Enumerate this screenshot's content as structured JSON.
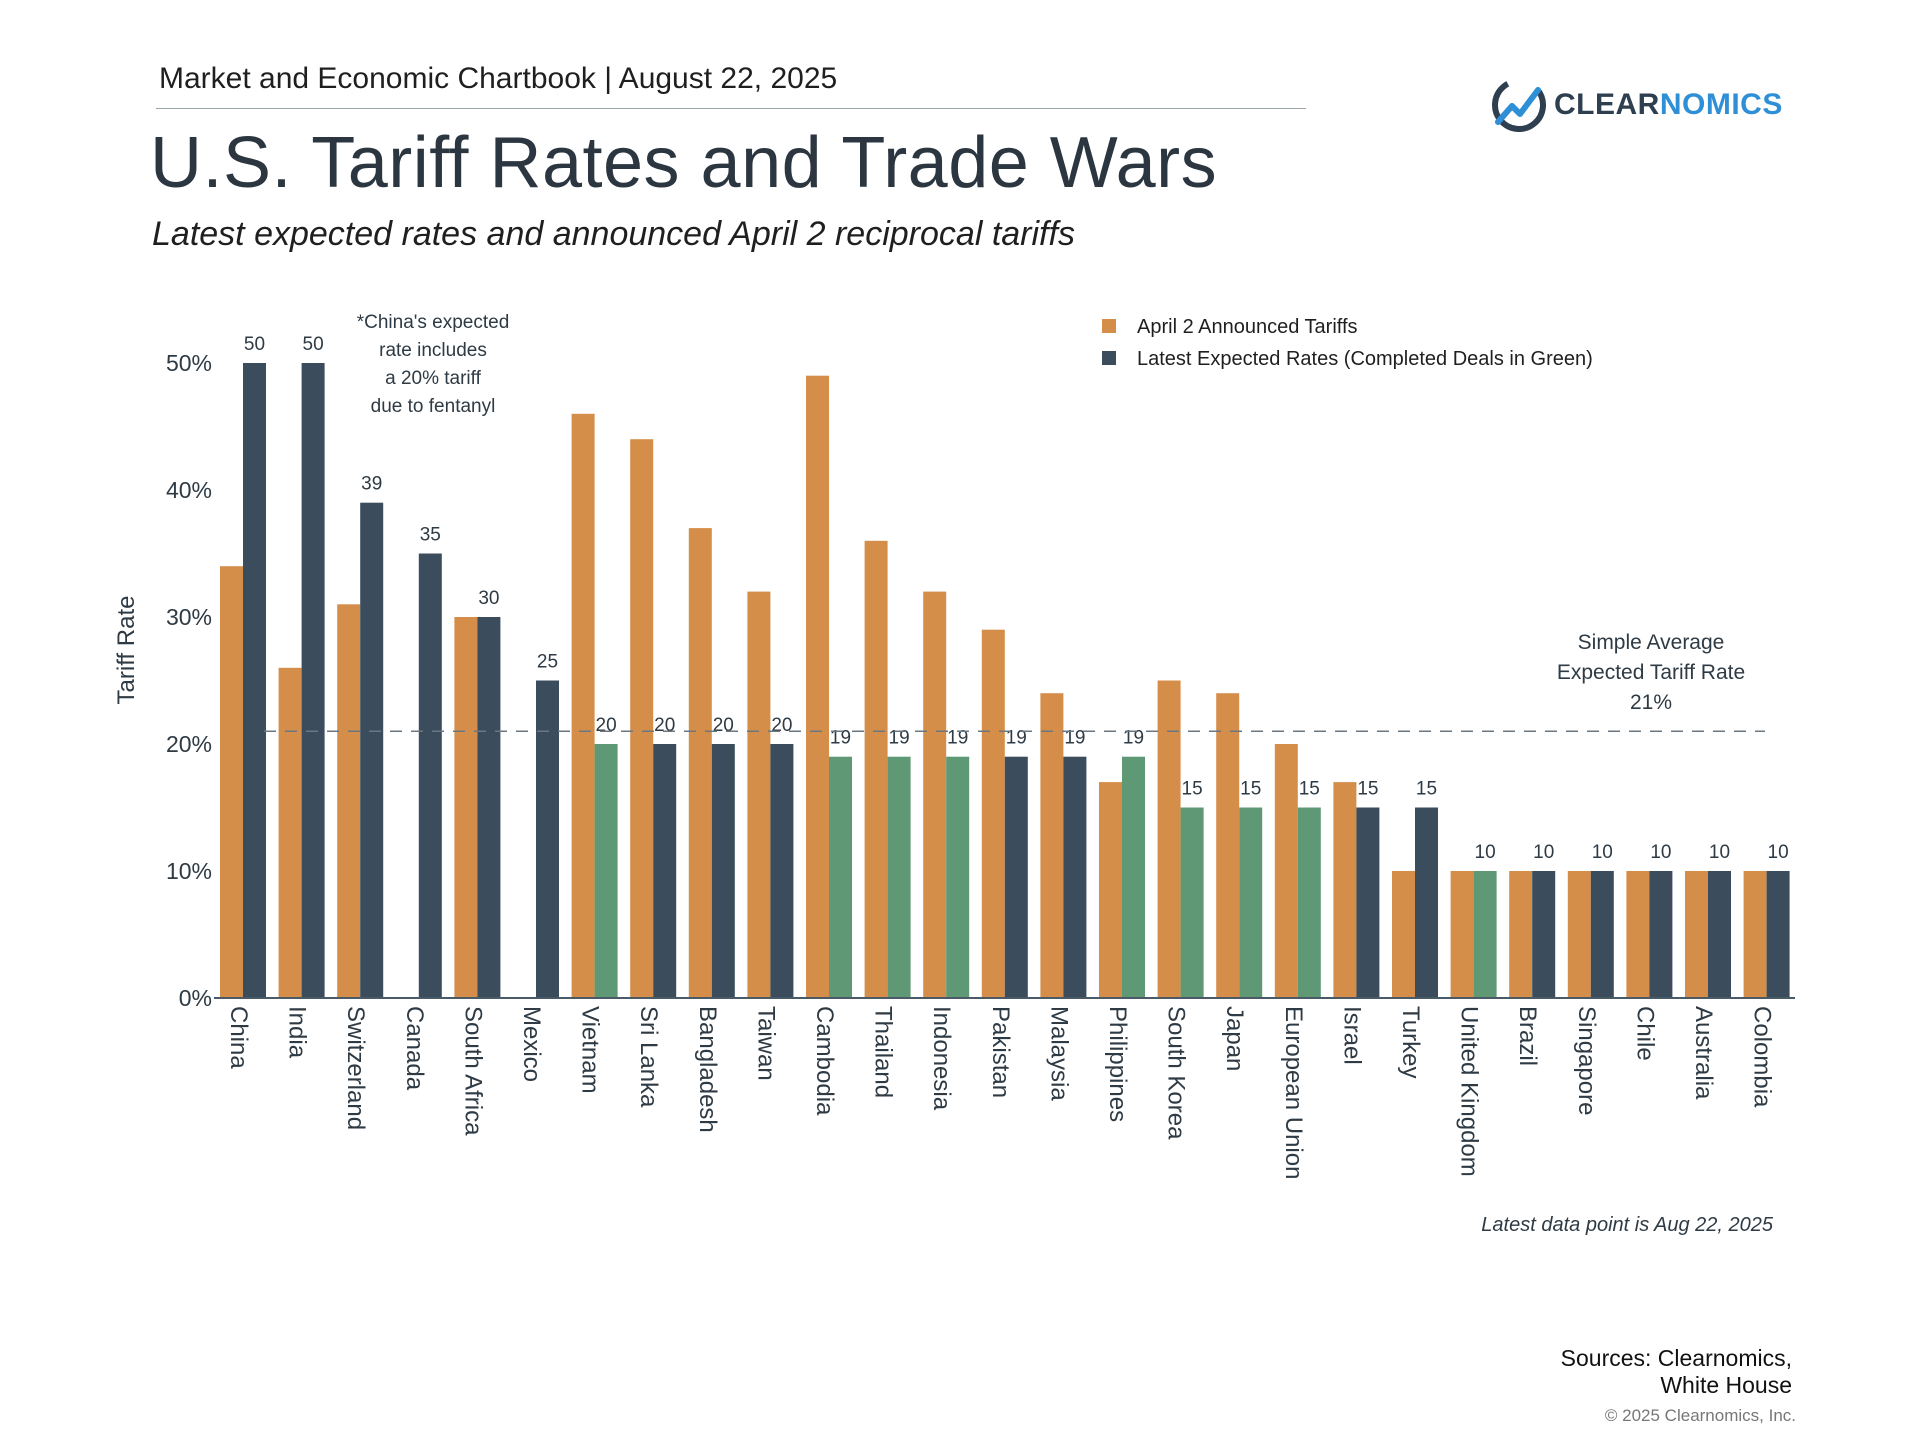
{
  "header": {
    "chartbook": "Market and Economic Chartbook | August 22, 2025",
    "logo_part1": "CLEAR",
    "logo_part2": "NOMICS",
    "logo_icon": "clearnomics-logo-icon"
  },
  "title": "U.S. Tariff Rates and Trade Wars",
  "subtitle": "Latest expected rates and announced April 2 reciprocal tariffs",
  "colors": {
    "announced": "#d58e49",
    "expected": "#3b4c5c",
    "completed": "#5f9874",
    "axis": "#4a5a66",
    "text": "#2e3a44"
  },
  "chart_data": {
    "type": "bar",
    "ylabel": "Tariff Rate",
    "xlabel": "",
    "ylim": [
      0,
      50
    ],
    "y_ticks": [
      0,
      10,
      20,
      30,
      40,
      50
    ],
    "y_tick_labels": [
      "0%",
      "10%",
      "20%",
      "30%",
      "40%",
      "50%"
    ],
    "grid": false,
    "legend_position": "top-right",
    "categories": [
      "China",
      "India",
      "Switzerland",
      "Canada",
      "South Africa",
      "Mexico",
      "Vietnam",
      "Sri Lanka",
      "Bangladesh",
      "Taiwan",
      "Cambodia",
      "Thailand",
      "Indonesia",
      "Pakistan",
      "Malaysia",
      "Philippines",
      "South Korea",
      "Japan",
      "European Union",
      "Israel",
      "Turkey",
      "United Kingdom",
      "Brazil",
      "Singapore",
      "Chile",
      "Australia",
      "Colombia"
    ],
    "series": [
      {
        "name": "April 2 Announced Tariffs",
        "values": [
          34,
          26,
          31,
          null,
          30,
          null,
          46,
          44,
          37,
          32,
          49,
          36,
          32,
          29,
          24,
          17,
          25,
          24,
          20,
          17,
          10,
          10,
          10,
          10,
          10,
          10,
          10
        ]
      },
      {
        "name": "Latest Expected Rates (Completed Deals in Green)",
        "values": [
          50,
          50,
          39,
          35,
          30,
          25,
          20,
          20,
          20,
          20,
          19,
          19,
          19,
          19,
          19,
          19,
          15,
          15,
          15,
          15,
          15,
          10,
          10,
          10,
          10,
          10,
          10
        ],
        "completed_deal": [
          false,
          false,
          false,
          false,
          false,
          false,
          true,
          false,
          false,
          false,
          true,
          true,
          true,
          false,
          false,
          true,
          true,
          true,
          true,
          false,
          false,
          true,
          false,
          false,
          false,
          false,
          false
        ]
      }
    ],
    "data_labels": [
      "50",
      "50",
      "39",
      "35",
      "30",
      "25",
      "20",
      "20",
      "20",
      "20",
      "19",
      "19",
      "19",
      "19",
      "19",
      "19",
      "15",
      "15",
      "15",
      "15",
      "15",
      "10",
      "10",
      "10",
      "10",
      "10",
      "10"
    ],
    "reference_line": {
      "value": 21,
      "style": "dashed",
      "label_lines": [
        "Simple Average",
        "Expected Tariff Rate",
        "21%"
      ]
    },
    "annotation_lines": [
      "*China's expected",
      "rate includes",
      "a 20% tariff",
      "due to fentanyl"
    ]
  },
  "footer": {
    "latest_note": "Latest data point is Aug 22, 2025",
    "sources_line1": "Sources: Clearnomics,",
    "sources_line2": "White House",
    "copyright": "© 2025 Clearnomics, Inc."
  }
}
